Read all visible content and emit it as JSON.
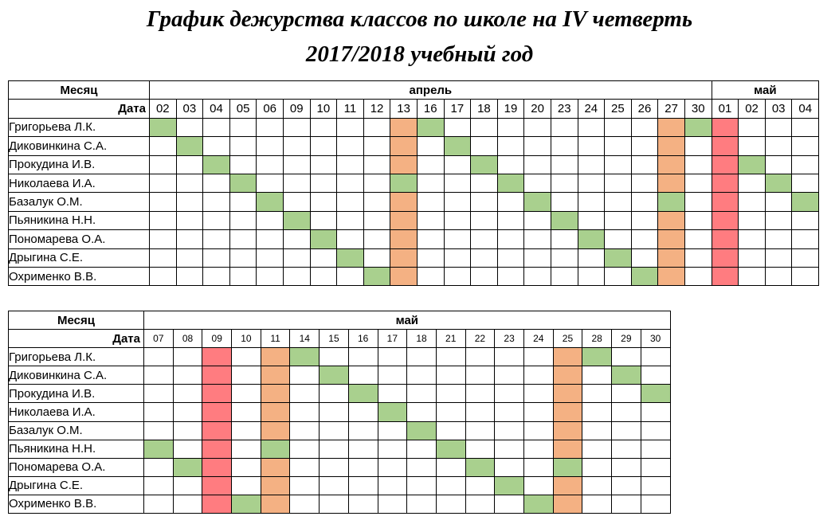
{
  "title": {
    "line1": "График дежурства классов по школе на IV четверть",
    "line2": "2017/2018 учебный год"
  },
  "colors": {
    "duty": "#a9d08e",
    "special": "#f4b183",
    "holiday": "#ff7c80"
  },
  "table1": {
    "month_label": "Месяц",
    "date_label": "Дата",
    "months": [
      {
        "name": "апрель",
        "span": 21
      },
      {
        "name": "май",
        "span": 4
      }
    ],
    "days": [
      "02",
      "03",
      "04",
      "05",
      "06",
      "09",
      "10",
      "11",
      "12",
      "13",
      "16",
      "17",
      "18",
      "19",
      "20",
      "23",
      "24",
      "25",
      "26",
      "27",
      "30",
      "01",
      "02",
      "03",
      "04"
    ],
    "rows": [
      {
        "name": "Григорьева Л.К.",
        "cells": [
          "g",
          "",
          "",
          "",
          "",
          "",
          "",
          "",
          "",
          "o",
          "g",
          "",
          "",
          "",
          "",
          "",
          "",
          "",
          "",
          "o",
          "g",
          "r",
          "",
          "",
          ""
        ]
      },
      {
        "name": "Диковинкина С.А.",
        "cells": [
          "",
          "g",
          "",
          "",
          "",
          "",
          "",
          "",
          "",
          "o",
          "",
          "g",
          "",
          "",
          "",
          "",
          "",
          "",
          "",
          "o",
          "",
          "r",
          "",
          "",
          ""
        ]
      },
      {
        "name": "Прокудина И.В.",
        "cells": [
          "",
          "",
          "g",
          "",
          "",
          "",
          "",
          "",
          "",
          "o",
          "",
          "",
          "g",
          "",
          "",
          "",
          "",
          "",
          "",
          "o",
          "",
          "r",
          "g",
          "",
          ""
        ]
      },
      {
        "name": "Николаева И.А.",
        "cells": [
          "",
          "",
          "",
          "g",
          "",
          "",
          "",
          "",
          "",
          "g",
          "",
          "",
          "",
          "g",
          "",
          "",
          "",
          "",
          "",
          "o",
          "",
          "r",
          "",
          "g",
          ""
        ]
      },
      {
        "name": "Базалук О.М.",
        "cells": [
          "",
          "",
          "",
          "",
          "g",
          "",
          "",
          "",
          "",
          "o",
          "",
          "",
          "",
          "",
          "g",
          "",
          "",
          "",
          "",
          "g",
          "",
          "r",
          "",
          "",
          "g"
        ]
      },
      {
        "name": "Пьяникина Н.Н.",
        "cells": [
          "",
          "",
          "",
          "",
          "",
          "g",
          "",
          "",
          "",
          "o",
          "",
          "",
          "",
          "",
          "",
          "g",
          "",
          "",
          "",
          "o",
          "",
          "r",
          "",
          "",
          ""
        ]
      },
      {
        "name": "Пономарева О.А.",
        "cells": [
          "",
          "",
          "",
          "",
          "",
          "",
          "g",
          "",
          "",
          "o",
          "",
          "",
          "",
          "",
          "",
          "",
          "g",
          "",
          "",
          "o",
          "",
          "r",
          "",
          "",
          ""
        ]
      },
      {
        "name": "Дрыгина С.Е.",
        "cells": [
          "",
          "",
          "",
          "",
          "",
          "",
          "",
          "g",
          "",
          "o",
          "",
          "",
          "",
          "",
          "",
          "",
          "",
          "g",
          "",
          "o",
          "",
          "r",
          "",
          "",
          ""
        ]
      },
      {
        "name": "Охрименко В.В.",
        "cells": [
          "",
          "",
          "",
          "",
          "",
          "",
          "",
          "",
          "g",
          "o",
          "",
          "",
          "",
          "",
          "",
          "",
          "",
          "",
          "g",
          "o",
          "",
          "r",
          "",
          "",
          ""
        ]
      }
    ]
  },
  "table2": {
    "month_label": "Месяц",
    "date_label": "Дата",
    "months": [
      {
        "name": "май",
        "span": 18
      }
    ],
    "days": [
      "07",
      "08",
      "09",
      "10",
      "11",
      "14",
      "15",
      "16",
      "17",
      "18",
      "21",
      "22",
      "23",
      "24",
      "25",
      "28",
      "29",
      "30"
    ],
    "rows": [
      {
        "name": "Григорьева Л.К.",
        "cells": [
          "",
          "",
          "r",
          "",
          "o",
          "g",
          "",
          "",
          "",
          "",
          "",
          "",
          "",
          "",
          "o",
          "g",
          "",
          ""
        ]
      },
      {
        "name": "Диковинкина С.А.",
        "cells": [
          "",
          "",
          "r",
          "",
          "o",
          "",
          "g",
          "",
          "",
          "",
          "",
          "",
          "",
          "",
          "o",
          "",
          "g",
          ""
        ]
      },
      {
        "name": "Прокудина И.В.",
        "cells": [
          "",
          "",
          "r",
          "",
          "o",
          "",
          "",
          "g",
          "",
          "",
          "",
          "",
          "",
          "",
          "o",
          "",
          "",
          "g"
        ]
      },
      {
        "name": "Николаева И.А.",
        "cells": [
          "",
          "",
          "r",
          "",
          "o",
          "",
          "",
          "",
          "g",
          "",
          "",
          "",
          "",
          "",
          "o",
          "",
          "",
          ""
        ]
      },
      {
        "name": "Базалук О.М.",
        "cells": [
          "",
          "",
          "r",
          "",
          "o",
          "",
          "",
          "",
          "",
          "g",
          "",
          "",
          "",
          "",
          "o",
          "",
          "",
          ""
        ]
      },
      {
        "name": "Пьяникина Н.Н.",
        "cells": [
          "g",
          "",
          "r",
          "",
          "g",
          "",
          "",
          "",
          "",
          "",
          "g",
          "",
          "",
          "",
          "o",
          "",
          "",
          ""
        ]
      },
      {
        "name": "Пономарева О.А.",
        "cells": [
          "",
          "g",
          "r",
          "",
          "o",
          "",
          "",
          "",
          "",
          "",
          "",
          "g",
          "",
          "",
          "g",
          "",
          "",
          ""
        ]
      },
      {
        "name": "Дрыгина С.Е.",
        "cells": [
          "",
          "",
          "r",
          "",
          "o",
          "",
          "",
          "",
          "",
          "",
          "",
          "",
          "g",
          "",
          "o",
          "",
          "",
          ""
        ]
      },
      {
        "name": "Охрименко В.В.",
        "cells": [
          "",
          "",
          "r",
          "g",
          "o",
          "",
          "",
          "",
          "",
          "",
          "",
          "",
          "",
          "g",
          "o",
          "",
          "",
          ""
        ]
      }
    ]
  }
}
